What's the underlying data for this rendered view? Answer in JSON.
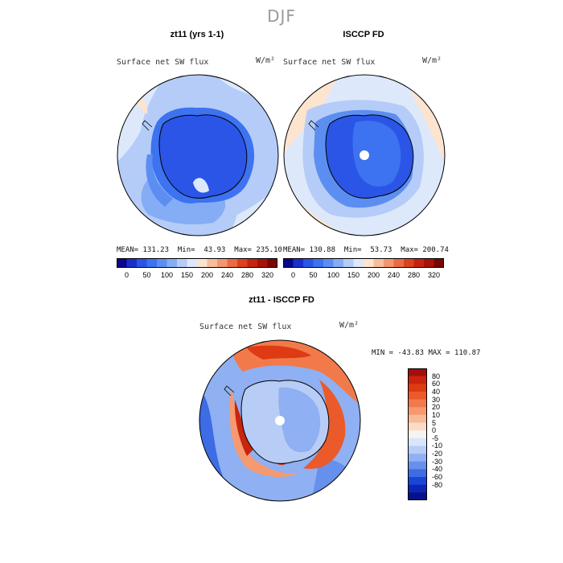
{
  "figure": {
    "season_title": "DJF"
  },
  "panels": [
    {
      "title": "zt11 (yrs 1-1)",
      "variable": "Surface net SW flux",
      "units": "W/m²",
      "stats": "MEAN= 131.23  Min=  43.93  Max= 235.10"
    },
    {
      "title": "ISCCP FD",
      "variable": "Surface net SW flux",
      "units": "W/m²",
      "stats": "MEAN= 130.88  Min=  53.73  Max= 200.74"
    }
  ],
  "shared_colorbar": {
    "tick_labels": [
      "0",
      "50",
      "100",
      "150",
      "200",
      "240",
      "280",
      "320"
    ],
    "colors": [
      "#08088c",
      "#1a2ec8",
      "#2a55e6",
      "#3d72f0",
      "#5c8ef2",
      "#84adf5",
      "#b4ccf7",
      "#dde8fb",
      "#fde4cf",
      "#f8bd9b",
      "#f29670",
      "#ea6b45",
      "#dc4220",
      "#c42410",
      "#a51308",
      "#7a0603"
    ]
  },
  "difference_panel": {
    "title": "zt11 - ISCCP FD",
    "variable": "Surface net SW flux",
    "units": "W/m²",
    "stats": "MIN = -43.83 MAX = 110.87",
    "colorbar_labels": [
      "80",
      "60",
      "40",
      "30",
      "20",
      "10",
      "5",
      "0",
      "-5",
      "-10",
      "-20",
      "-30",
      "-40",
      "-60",
      "-80"
    ],
    "colorbar_colors": [
      "#a50f0a",
      "#c9250e",
      "#de3a14",
      "#ea5a2a",
      "#f27a4a",
      "#f59a70",
      "#f8bb99",
      "#fbdcc6",
      "#f7f3ee",
      "#d9e5fb",
      "#b8cdf6",
      "#8fb0f2",
      "#6690ec",
      "#3d6ce4",
      "#1b45d6",
      "#0a26b4",
      "#06128a"
    ]
  },
  "chart_data": [
    {
      "type": "heatmap",
      "title": "zt11 (yrs 1-1)",
      "variable": "Surface net SW flux",
      "units": "W/m^2",
      "projection": "south polar stereographic",
      "mean": 131.23,
      "min": 43.93,
      "max": 235.1,
      "levels": [
        0,
        50,
        100,
        150,
        200,
        240,
        280,
        320
      ]
    },
    {
      "type": "heatmap",
      "title": "ISCCP FD",
      "variable": "Surface net SW flux",
      "units": "W/m^2",
      "projection": "south polar stereographic",
      "mean": 130.88,
      "min": 53.73,
      "max": 200.74,
      "levels": [
        0,
        50,
        100,
        150,
        200,
        240,
        280,
        320
      ]
    },
    {
      "type": "heatmap",
      "title": "zt11 - ISCCP FD",
      "variable": "Surface net SW flux",
      "units": "W/m^2",
      "projection": "south polar stereographic",
      "min": -43.83,
      "max": 110.87,
      "levels": [
        -80,
        -60,
        -40,
        -30,
        -20,
        -10,
        -5,
        0,
        5,
        10,
        20,
        30,
        40,
        60,
        80
      ]
    }
  ]
}
